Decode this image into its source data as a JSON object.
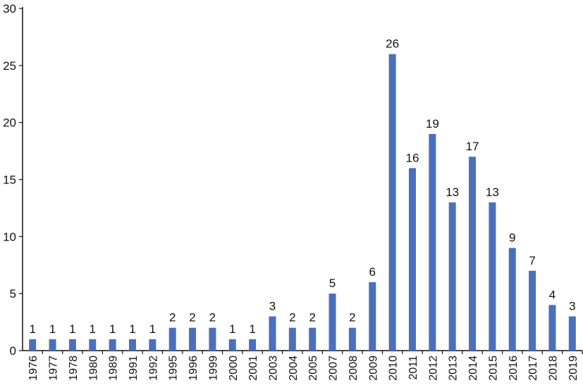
{
  "chart_data": {
    "type": "bar",
    "categories": [
      "1976",
      "1977",
      "1978",
      "1980",
      "1989",
      "1991",
      "1992",
      "1995",
      "1996",
      "1999",
      "2000",
      "2001",
      "2003",
      "2004",
      "2005",
      "2007",
      "2008",
      "2009",
      "2010",
      "2011",
      "2012",
      "2013",
      "2014",
      "2015",
      "2016",
      "2017",
      "2018",
      "2019"
    ],
    "values": [
      1,
      1,
      1,
      1,
      1,
      1,
      1,
      2,
      2,
      2,
      1,
      1,
      3,
      2,
      2,
      5,
      2,
      6,
      26,
      16,
      19,
      13,
      17,
      13,
      9,
      7,
      4,
      3
    ],
    "y_ticks": [
      "0",
      "5",
      "10",
      "15",
      "20",
      "25",
      "30"
    ],
    "ylim": [
      0,
      30
    ],
    "grid": false,
    "bar_color": "#4a6fbd",
    "axis_color": "#111111",
    "data_labels": true
  }
}
